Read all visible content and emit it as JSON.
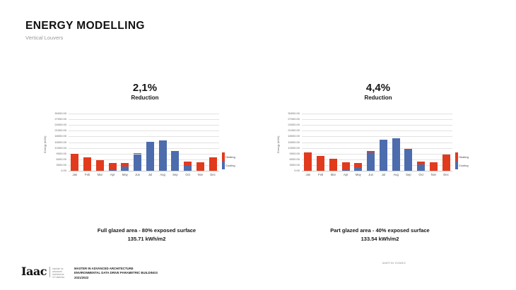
{
  "slide": {
    "title": "ENERGY MODELLING",
    "subtitle": "Vertical Louvers"
  },
  "panels": [
    {
      "reduction_value": "2,1%",
      "reduction_label": "Reduction",
      "caption_line1": "Full glazed area - 80% exposed surface",
      "caption_line2": "135.71 kWh/m2"
    },
    {
      "reduction_value": "4,4%",
      "reduction_label": "Reduction",
      "caption_line1": "Part glazed area - 40% exposed surface",
      "caption_line2": "133.54 kWh/m2"
    }
  ],
  "chart_data": [
    {
      "type": "bar",
      "stacked": true,
      "title": "Full glazed area - 80% exposed surface",
      "categories": [
        "Jan",
        "Feb",
        "Mar",
        "Apr",
        "May",
        "Jun",
        "Jul",
        "Aug",
        "Sep",
        "Oct",
        "Nov",
        "Dec"
      ],
      "series": [
        {
          "name": "Heating",
          "color": "#e23a1d",
          "values": [
            8800,
            7000,
            5700,
            3900,
            1700,
            600,
            0,
            0,
            500,
            1800,
            4300,
            7200
          ]
        },
        {
          "name": "Cooling",
          "color": "#4d6cae",
          "values": [
            0,
            0,
            0,
            300,
            2300,
            8700,
            15200,
            15900,
            10000,
            2900,
            0,
            0
          ]
        }
      ],
      "xlabel": "",
      "ylabel": "Energy (kWh)",
      "ylim": [
        0,
        30000
      ],
      "ytick_step": 3000,
      "grid": true,
      "legend_position": "right"
    },
    {
      "type": "bar",
      "stacked": true,
      "title": "Part glazed area - 40% exposed surface",
      "categories": [
        "Jan",
        "Feb",
        "Mar",
        "Apr",
        "May",
        "Jun",
        "Jul",
        "Aug",
        "Sep",
        "Oct",
        "Nov",
        "Dec"
      ],
      "series": [
        {
          "name": "Heating",
          "color": "#e23a1d",
          "values": [
            9700,
            7700,
            6300,
            4100,
            2000,
            500,
            0,
            0,
            300,
            1600,
            4400,
            8400
          ]
        },
        {
          "name": "Cooling",
          "color": "#4d6cae",
          "values": [
            0,
            0,
            0,
            300,
            2000,
            9700,
            16400,
            17200,
            11200,
            3400,
            0,
            0
          ]
        }
      ],
      "xlabel": "",
      "ylabel": "Energy (kWh)",
      "ylim": [
        0,
        30000
      ],
      "ytick_step": 3000,
      "grid": true,
      "legend_position": "right"
    }
  ],
  "footer": {
    "logo_text": "Iaac",
    "logo_sub_lines": [
      "Institute for",
      "advanced",
      "architecture",
      "of Catalonia"
    ],
    "program_lines": [
      "MASTER IN ADVANCED ARCHITECTURE",
      "ENVIRONMENTAL DATA DRIVE PARAMETRIC BUILDINGS",
      "2021/2022"
    ],
    "author": "MARTIN GOMEZ"
  },
  "colors": {
    "heating": "#e23a1d",
    "cooling": "#4d6cae"
  }
}
